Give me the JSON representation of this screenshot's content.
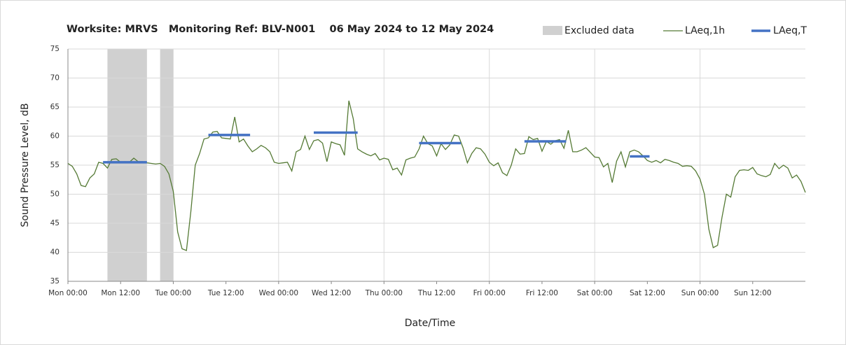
{
  "chart_data": {
    "type": "line",
    "title": "Worksite: MRVS   Monitoring Ref: BLV-N001    06 May 2024 to 12 May 2024",
    "xlabel": "Date/Time",
    "ylabel": "Sound Pressure Level, dB",
    "xlim": [
      0,
      168
    ],
    "xticks": [
      {
        "value": 0,
        "label": "Mon 00:00"
      },
      {
        "value": 12,
        "label": "Mon 12:00"
      },
      {
        "value": 24,
        "label": "Tue 00:00"
      },
      {
        "value": 36,
        "label": "Tue 12:00"
      },
      {
        "value": 48,
        "label": "Wed 00:00"
      },
      {
        "value": 60,
        "label": "Wed 12:00"
      },
      {
        "value": 72,
        "label": "Thu 00:00"
      },
      {
        "value": 84,
        "label": "Thu 12:00"
      },
      {
        "value": 96,
        "label": "Fri 00:00"
      },
      {
        "value": 108,
        "label": "Fri 12:00"
      },
      {
        "value": 120,
        "label": "Sat 00:00"
      },
      {
        "value": 132,
        "label": "Sat 12:00"
      },
      {
        "value": 144,
        "label": "Sun 00:00"
      },
      {
        "value": 156,
        "label": "Sun 12:00"
      }
    ],
    "ylim": [
      35,
      75
    ],
    "yticks": [
      35,
      40,
      45,
      50,
      55,
      60,
      65,
      70,
      75
    ],
    "grid": true,
    "excluded": {
      "name": "Excluded data",
      "color": "#d0d0d0",
      "ranges": [
        [
          9,
          18
        ],
        [
          21,
          24
        ]
      ]
    },
    "series": [
      {
        "name": "LAeq,1h",
        "color": "#557a35",
        "x": [
          0,
          1,
          2,
          3,
          4,
          5,
          6,
          7,
          8,
          9,
          10,
          11,
          12,
          13,
          14,
          15,
          16,
          17,
          18,
          19,
          20,
          21,
          22,
          23,
          24,
          25,
          26,
          27,
          28,
          29,
          30,
          31,
          32,
          33,
          34,
          35,
          36,
          37,
          38,
          39,
          40,
          41,
          42,
          43,
          44,
          45,
          46,
          47,
          48,
          49,
          50,
          51,
          52,
          53,
          54,
          55,
          56,
          57,
          58,
          59,
          60,
          61,
          62,
          63,
          64,
          65,
          66,
          67,
          68,
          69,
          70,
          71,
          72,
          73,
          74,
          75,
          76,
          77,
          78,
          79,
          80,
          81,
          82,
          83,
          84,
          85,
          86,
          87,
          88,
          89,
          90,
          91,
          92,
          93,
          94,
          95,
          96,
          97,
          98,
          99,
          100,
          101,
          102,
          103,
          104,
          105,
          106,
          107,
          108,
          109,
          110,
          111,
          112,
          113,
          114,
          115,
          116,
          117,
          118,
          119,
          120,
          121,
          122,
          123,
          124,
          125,
          126,
          127,
          128,
          129,
          130,
          131,
          132,
          133,
          134,
          135,
          136,
          137,
          138,
          139,
          140,
          141,
          142,
          143,
          144,
          145,
          146,
          147,
          148,
          149,
          150,
          151,
          152,
          153,
          154,
          155,
          156,
          157,
          158,
          159,
          160,
          161,
          162,
          163,
          164,
          165,
          166,
          167,
          168
        ],
        "values": [
          55.3,
          54.8,
          53.5,
          51.5,
          51.3,
          52.8,
          53.5,
          55.5,
          55.3,
          54.5,
          56,
          56.1,
          55.5,
          55.6,
          55.5,
          56.2,
          55.6,
          55.6,
          55.4,
          55.3,
          55.2,
          55.3,
          54.8,
          53.5,
          50.5,
          43.5,
          40.6,
          40.3,
          47,
          55,
          57,
          59.5,
          59.7,
          60.7,
          60.8,
          59.7,
          59.6,
          59.5,
          63.3,
          59,
          59.5,
          58.3,
          57.3,
          57.8,
          58.4,
          58,
          57.3,
          55.5,
          55.3,
          55.4,
          55.5,
          54,
          57.3,
          57.7,
          60,
          57.7,
          59.2,
          59.4,
          58.8,
          55.6,
          59,
          58.7,
          58.5,
          56.7,
          66.1,
          63,
          57.8,
          57.3,
          56.9,
          56.6,
          57,
          55.9,
          56.2,
          56,
          54.2,
          54.5,
          53.3,
          55.9,
          56.2,
          56.4,
          57.8,
          60,
          58.7,
          58.3,
          56.6,
          58.7,
          57.7,
          58.5,
          60.2,
          60,
          58,
          55.4,
          57,
          58,
          57.8,
          56.9,
          55.5,
          54.9,
          55.4,
          53.7,
          53.2,
          55,
          57.8,
          56.9,
          57,
          59.9,
          59.4,
          59.6,
          57.4,
          59.1,
          58.6,
          59.2,
          59.4,
          57.9,
          61,
          57.3,
          57.3,
          57.6,
          58,
          57.2,
          56.4,
          56.3,
          54.7,
          55.3,
          52,
          55.7,
          57.3,
          54.7,
          57.3,
          57.6,
          57.3,
          56.6,
          55.8,
          55.5,
          55.8,
          55.4,
          56,
          55.8,
          55.5,
          55.3,
          54.8,
          54.9,
          54.8,
          54,
          52.6,
          50,
          44,
          40.8,
          41.2,
          46,
          50,
          49.5,
          53,
          54.1,
          54.2,
          54.1,
          54.6,
          53.5,
          53.2,
          53,
          53.4,
          55.3,
          54.4,
          55,
          54.5,
          52.8,
          53.3,
          52.2,
          50.3
        ]
      }
    ],
    "periods": {
      "name": "LAeq,T",
      "color": "#4472c4",
      "segments": [
        {
          "start": 8,
          "end": 18,
          "value": 55.5
        },
        {
          "start": 32,
          "end": 41.5,
          "value": 60.2
        },
        {
          "start": 56,
          "end": 66,
          "value": 60.6
        },
        {
          "start": 80,
          "end": 89.5,
          "value": 58.8
        },
        {
          "start": 104,
          "end": 113.5,
          "value": 59.1
        },
        {
          "start": 128,
          "end": 132.5,
          "value": 56.5
        }
      ]
    }
  }
}
